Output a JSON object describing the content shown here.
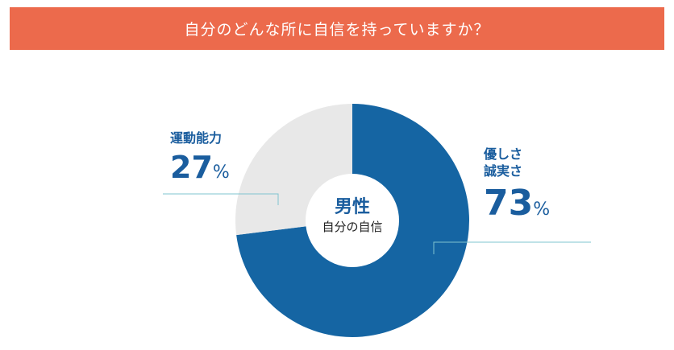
{
  "header": {
    "title": "自分のどんな所に自信を持っていますか？"
  },
  "center": {
    "label": "男性",
    "sublabel": "自分の自信"
  },
  "labels": {
    "left": {
      "category": "運動能力",
      "value": "27",
      "unit": "%"
    },
    "right": {
      "category_line1": "優しさ",
      "category_line2": "誠実さ",
      "value": "73",
      "unit": "%"
    }
  },
  "colors": {
    "banner": "#ec6a4c",
    "primary": "#1565a3",
    "secondary": "#e8e8e8",
    "leader": "#7fc4cf"
  },
  "chart_data": {
    "type": "pie",
    "title": "自分のどんな所に自信を持っていますか？",
    "slices": [
      {
        "label": "優しさ 誠実さ",
        "value": 73,
        "color": "#1565a3"
      },
      {
        "label": "運動能力",
        "value": 27,
        "color": "#e8e8e8"
      }
    ]
  }
}
